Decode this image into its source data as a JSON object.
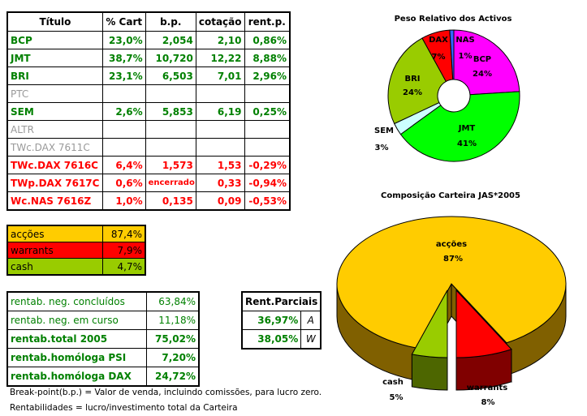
{
  "holdings_table": {
    "headers": [
      "Título",
      "% Cart",
      "b.p.",
      "cotação",
      "rent.p."
    ],
    "rows": [
      {
        "titulo": "BCP",
        "cart": "23,0%",
        "bp": "2,054",
        "cotacao": "2,10",
        "rent": "0,86%",
        "status": "green"
      },
      {
        "titulo": "JMT",
        "cart": "38,7%",
        "bp": "10,720",
        "cotacao": "12,22",
        "rent": "8,88%",
        "status": "green"
      },
      {
        "titulo": "BRI",
        "cart": "23,1%",
        "bp": "6,503",
        "cotacao": "7,01",
        "rent": "2,96%",
        "status": "green"
      },
      {
        "titulo": "PTC",
        "cart": "",
        "bp": "",
        "cotacao": "",
        "rent": "",
        "status": "gray"
      },
      {
        "titulo": "SEM",
        "cart": "2,6%",
        "bp": "5,853",
        "cotacao": "6,19",
        "rent": "0,25%",
        "status": "green"
      },
      {
        "titulo": "ALTR",
        "cart": "",
        "bp": "",
        "cotacao": "",
        "rent": "",
        "status": "gray"
      },
      {
        "titulo": "TWc.DAX 7611C",
        "cart": "",
        "bp": "",
        "cotacao": "",
        "rent": "",
        "status": "gray"
      },
      {
        "titulo": "TWc.DAX 7616C",
        "cart": "6,4%",
        "bp": "1,573",
        "cotacao": "1,53",
        "rent": "-0,29%",
        "status": "red"
      },
      {
        "titulo": "TWp.DAX 7617C",
        "cart": "0,6%",
        "bp": "encerrado",
        "cotacao": "0,33",
        "rent": "-0,94%",
        "status": "red"
      },
      {
        "titulo": "Wc.NAS 7616Z",
        "cart": "1,0%",
        "bp": "0,135",
        "cotacao": "0,09",
        "rent": "-0,53%",
        "status": "red"
      }
    ]
  },
  "allocation_table": [
    {
      "label": "acções",
      "value": "87,4%",
      "color": "#ffcc00"
    },
    {
      "label": "warrants",
      "value": "7,9%",
      "color": "#ff0000"
    },
    {
      "label": "cash",
      "value": "4,7%",
      "color": "#99cc00"
    }
  ],
  "returns_table": [
    {
      "label": "rentab. neg. concluídos",
      "value": "63,84%",
      "bold": false
    },
    {
      "label": "rentab. neg. em curso",
      "value": "11,18%",
      "bold": false
    },
    {
      "label": "rentab.total 2005",
      "value": "75,02%",
      "bold": true
    },
    {
      "label": "rentab.homóloga PSI",
      "value": "7,20%",
      "bold": true
    },
    {
      "label": "rentab.homóloga DAX",
      "value": "24,72%",
      "bold": true
    }
  ],
  "partial_returns": {
    "header": "Rent.Parciais",
    "rows": [
      {
        "value": "36,97%",
        "code": "A"
      },
      {
        "value": "38,05%",
        "code": "W"
      }
    ]
  },
  "notes": [
    "Break-point(b.p.) = Valor de venda, incluindo comissões, para lucro zero.",
    "Rentabilidades = lucro/investimento total da Carteira"
  ],
  "chart_data": [
    {
      "type": "pie",
      "variant": "doughnut",
      "title": "Peso Relativo dos Activos",
      "categories": [
        "BCP",
        "JMT",
        "SEM",
        "BRI",
        "DAX",
        "NAS"
      ],
      "values": [
        24,
        41,
        3,
        24,
        7,
        1
      ],
      "labels": [
        "24%",
        "41%",
        "3%",
        "24%",
        "7%",
        "1%"
      ],
      "colors": [
        "#ff00ff",
        "#00ff00",
        "#ccffff",
        "#99cc00",
        "#ff0000",
        "#3366ff"
      ]
    },
    {
      "type": "pie",
      "variant": "3d-exploded",
      "title": "Composição Carteira JAS*2005",
      "categories": [
        "acções",
        "warrants",
        "cash"
      ],
      "values": [
        87,
        8,
        5
      ],
      "labels": [
        "87%",
        "8%",
        "5%"
      ],
      "colors": [
        "#ffcc00",
        "#ff0000",
        "#99cc00"
      ],
      "side_colors": [
        "#806000",
        "#800000",
        "#4d6600"
      ]
    }
  ]
}
